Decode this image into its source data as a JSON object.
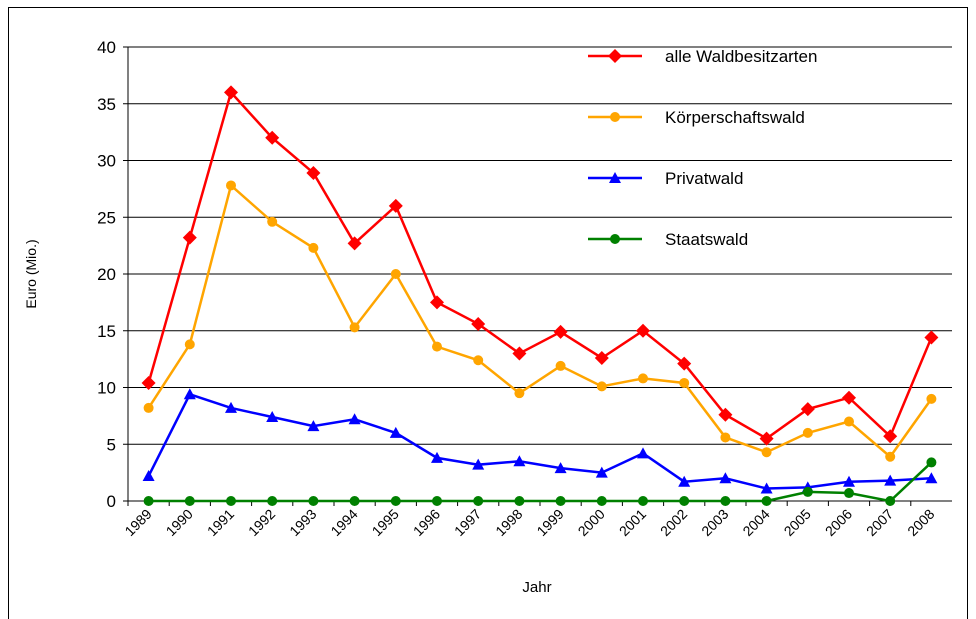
{
  "chart_data": {
    "type": "line",
    "x_label": "Jahr",
    "y_label": "Euro (Mio.)",
    "categories": [
      "1989",
      "1990",
      "1991",
      "1992",
      "1993",
      "1994",
      "1995",
      "1996",
      "1997",
      "1998",
      "1999",
      "2000",
      "2001",
      "2002",
      "2003",
      "2004",
      "2005",
      "2006",
      "2007",
      "2008"
    ],
    "series": [
      {
        "name": "alle Waldbesitzarten",
        "color": "#ff0000",
        "marker": "diamond",
        "values": [
          10.4,
          23.2,
          36,
          32,
          28.9,
          22.7,
          26,
          17.5,
          15.6,
          13,
          14.9,
          12.6,
          15,
          12.1,
          7.6,
          5.5,
          8.1,
          9.1,
          5.7,
          14.4
        ]
      },
      {
        "name": "Körperschaftswald",
        "color": "#ffa500",
        "marker": "circle",
        "values": [
          8.2,
          13.8,
          27.8,
          24.6,
          22.3,
          15.3,
          20,
          13.6,
          12.4,
          9.5,
          11.9,
          10.1,
          10.8,
          10.4,
          5.6,
          4.3,
          6,
          7,
          3.9,
          9
        ]
      },
      {
        "name": "Privatwald",
        "color": "#0000ff",
        "marker": "triangle",
        "values": [
          2.2,
          9.4,
          8.2,
          7.4,
          6.6,
          7.2,
          6,
          3.8,
          3.2,
          3.5,
          2.9,
          2.5,
          4.2,
          1.7,
          2,
          1.1,
          1.2,
          1.7,
          1.8,
          2
        ]
      },
      {
        "name": "Staatswald",
        "color": "#008000",
        "marker": "circle",
        "values": [
          0,
          0,
          0,
          0,
          0,
          0,
          0,
          0,
          0,
          0,
          0,
          0,
          0,
          0,
          0,
          0,
          0.8,
          0.7,
          0,
          3.4
        ]
      }
    ],
    "ylim": [
      0,
      40
    ],
    "yticks": [
      0,
      5,
      10,
      15,
      20,
      25,
      30,
      35,
      40
    ],
    "grid": true,
    "legend": "top-right"
  }
}
